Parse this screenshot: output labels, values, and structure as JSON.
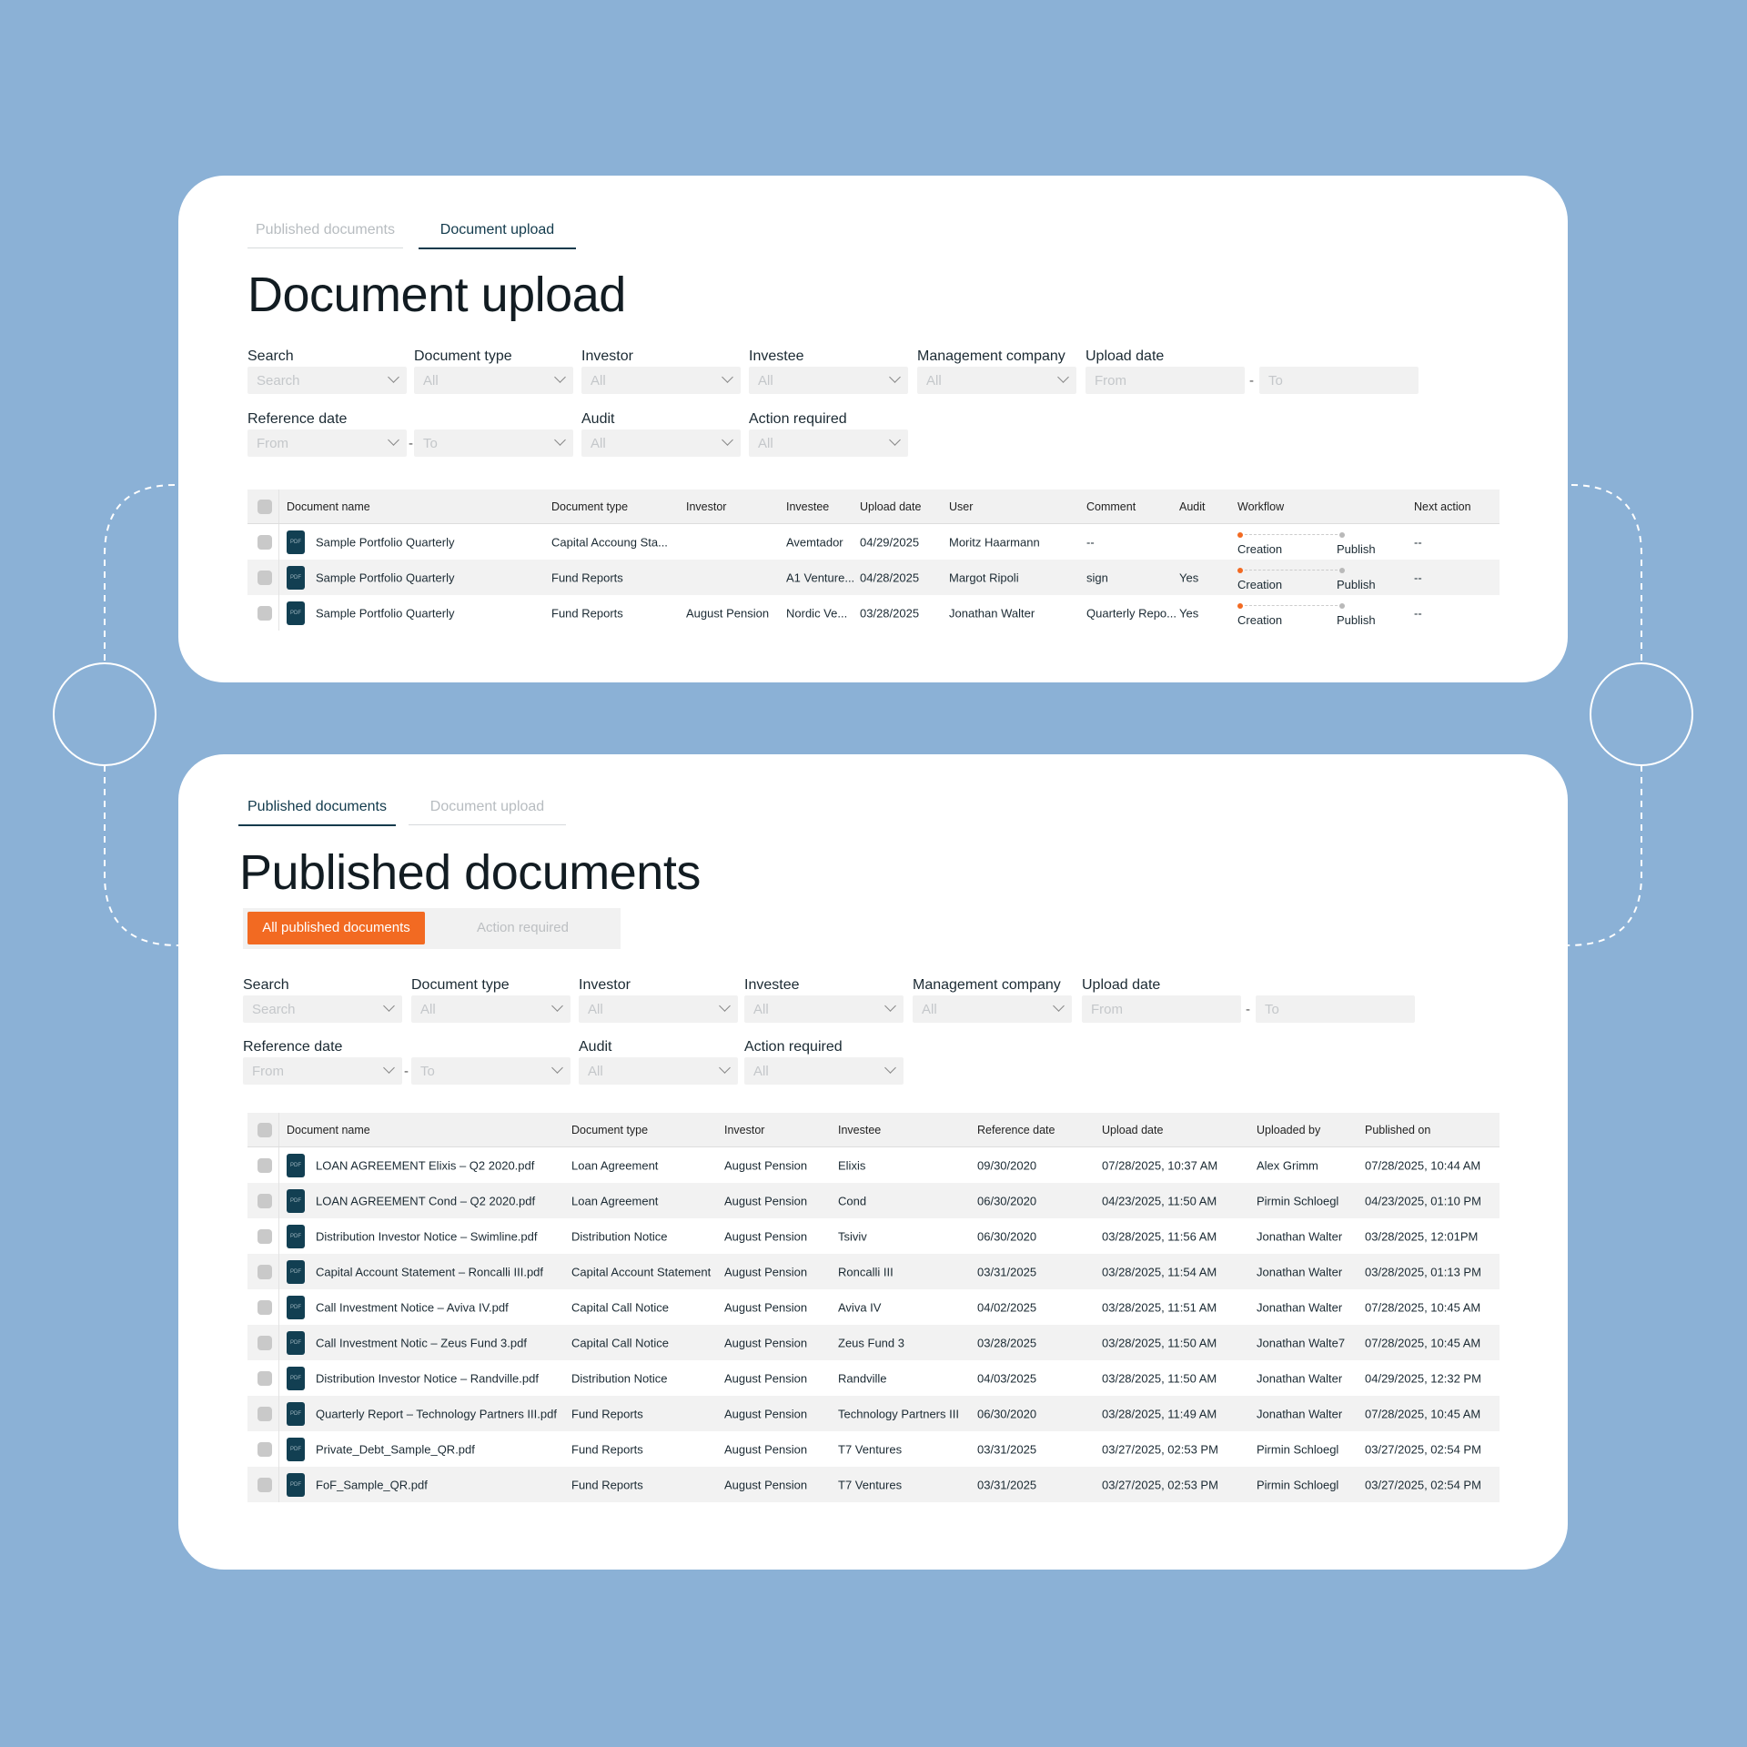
{
  "colors": {
    "background": "#8BB1D6",
    "accent": "#F26A22",
    "pdf_icon": "#123F52"
  },
  "upload": {
    "tabs": [
      "Published documents",
      "Document upload"
    ],
    "active_tab": 1,
    "title": "Document upload",
    "filters": {
      "search": {
        "label": "Search",
        "placeholder": "Search"
      },
      "doc_type": {
        "label": "Document type",
        "value": "All"
      },
      "investor": {
        "label": "Investor",
        "value": "All"
      },
      "investee": {
        "label": "Investee",
        "value": "All"
      },
      "mgmt": {
        "label": "Management company",
        "value": "All"
      },
      "upload_date": {
        "label": "Upload date",
        "from": "From",
        "to": "To",
        "sep": "-"
      },
      "ref_date": {
        "label": "Reference date",
        "from": "From",
        "to": "To",
        "sep": "-"
      },
      "audit": {
        "label": "Audit",
        "value": "All"
      },
      "action": {
        "label": "Action required",
        "value": "All"
      }
    },
    "columns": [
      "Document name",
      "Document type",
      "Investor",
      "Investee",
      "Upload date",
      "User",
      "Comment",
      "Audit",
      "Workflow",
      "Next action"
    ],
    "rows": [
      {
        "name": "Sample Portfolio Quarterly",
        "type": "Capital Accoung Sta...",
        "investor": "",
        "investee": "Avemtador",
        "upload": "04/29/2025",
        "user": "Moritz Haarmann",
        "comment": "--",
        "audit": "",
        "wf1": "Creation",
        "wf2": "Publish",
        "next": "--"
      },
      {
        "name": "Sample Portfolio Quarterly",
        "type": "Fund Reports",
        "investor": "",
        "investee": "A1 Venture...",
        "upload": "04/28/2025",
        "user": "Margot Ripoli",
        "comment": "sign",
        "audit": "Yes",
        "wf1": "Creation",
        "wf2": "Publish",
        "next": "--"
      },
      {
        "name": "Sample Portfolio Quarterly",
        "type": "Fund Reports",
        "investor": "August Pension",
        "investee": "Nordic Ve...",
        "upload": "03/28/2025",
        "user": "Jonathan Walter",
        "comment": "Quarterly Repo...",
        "audit": "Yes",
        "wf1": "Creation",
        "wf2": "Publish",
        "next": "--"
      }
    ]
  },
  "published": {
    "tabs": [
      "Published documents",
      "Document upload"
    ],
    "active_tab": 0,
    "title": "Published documents",
    "segments": [
      "All published documents",
      "Action required"
    ],
    "filters": {
      "search": {
        "label": "Search",
        "placeholder": "Search"
      },
      "doc_type": {
        "label": "Document type",
        "value": "All"
      },
      "investor": {
        "label": "Investor",
        "value": "All"
      },
      "investee": {
        "label": "Investee",
        "value": "All"
      },
      "mgmt": {
        "label": "Management company",
        "value": "All"
      },
      "upload_date": {
        "label": "Upload date",
        "from": "From",
        "to": "To",
        "sep": "-"
      },
      "ref_date": {
        "label": "Reference date",
        "from": "From",
        "to": "To",
        "sep": "-"
      },
      "audit": {
        "label": "Audit",
        "value": "All"
      },
      "action": {
        "label": "Action required",
        "value": "All"
      }
    },
    "columns": [
      "Document name",
      "Document type",
      "Investor",
      "Investee",
      "Reference date",
      "Upload date",
      "Uploaded by",
      "Published on"
    ],
    "rows": [
      {
        "name": "LOAN AGREEMENT Elixis – Q2 2020.pdf",
        "type": "Loan Agreement",
        "investor": "August Pension",
        "investee": "Elixis",
        "ref": "09/30/2020",
        "upload": "07/28/2025, 10:37 AM",
        "by": "Alex Grimm",
        "pub": "07/28/2025, 10:44 AM"
      },
      {
        "name": "LOAN AGREEMENT Cond – Q2 2020.pdf",
        "type": "Loan Agreement",
        "investor": "August Pension",
        "investee": "Cond",
        "ref": "06/30/2020",
        "upload": "04/23/2025, 11:50 AM",
        "by": "Pirmin Schloegl",
        "pub": "04/23/2025, 01:10 PM"
      },
      {
        "name": "Distribution Investor Notice – Swimline.pdf",
        "type": "Distribution Notice",
        "investor": "August Pension",
        "investee": "Tsiviv",
        "ref": "06/30/2020",
        "upload": "03/28/2025, 11:56 AM",
        "by": "Jonathan Walter",
        "pub": "03/28/2025, 12:01PM"
      },
      {
        "name": "Capital Account Statement – Roncalli III.pdf",
        "type": "Capital Account Statement",
        "investor": "August Pension",
        "investee": "Roncalli III",
        "ref": "03/31/2025",
        "upload": "03/28/2025, 11:54 AM",
        "by": "Jonathan Walter",
        "pub": "03/28/2025, 01:13 PM"
      },
      {
        "name": "Call Investment Notice – Aviva IV.pdf",
        "type": "Capital Call Notice",
        "investor": "August Pension",
        "investee": "Aviva IV",
        "ref": "04/02/2025",
        "upload": "03/28/2025, 11:51 AM",
        "by": "Jonathan Walter",
        "pub": "07/28/2025, 10:45 AM"
      },
      {
        "name": "Call Investment Notic – Zeus Fund 3.pdf",
        "type": "Capital Call Notice",
        "investor": "August Pension",
        "investee": "Zeus Fund 3",
        "ref": "03/28/2025",
        "upload": "03/28/2025, 11:50 AM",
        "by": "Jonathan Walte7",
        "pub": "07/28/2025, 10:45 AM"
      },
      {
        "name": "Distribution Investor Notice – Randville.pdf",
        "type": "Distribution Notice",
        "investor": "August Pension",
        "investee": "Randville",
        "ref": "04/03/2025",
        "upload": "03/28/2025, 11:50 AM",
        "by": "Jonathan Walter",
        "pub": "04/29/2025, 12:32 PM"
      },
      {
        "name": "Quarterly Report – Technology Partners III.pdf",
        "type": "Fund Reports",
        "investor": "August Pension",
        "investee": "Technology Partners III",
        "ref": "06/30/2020",
        "upload": "03/28/2025, 11:49 AM",
        "by": "Jonathan Walter",
        "pub": "07/28/2025, 10:45 AM"
      },
      {
        "name": "Private_Debt_Sample_QR.pdf",
        "type": "Fund Reports",
        "investor": "August Pension",
        "investee": "T7 Ventures",
        "ref": "03/31/2025",
        "upload": "03/27/2025, 02:53 PM",
        "by": "Pirmin Schloegl",
        "pub": "03/27/2025, 02:54 PM"
      },
      {
        "name": "FoF_Sample_QR.pdf",
        "type": "Fund Reports",
        "investor": "August Pension",
        "investee": "T7 Ventures",
        "ref": "03/31/2025",
        "upload": "03/27/2025, 02:53 PM",
        "by": "Pirmin Schloegl",
        "pub": "03/27/2025, 02:54 PM"
      }
    ],
    "pdf_label": "PDF"
  }
}
